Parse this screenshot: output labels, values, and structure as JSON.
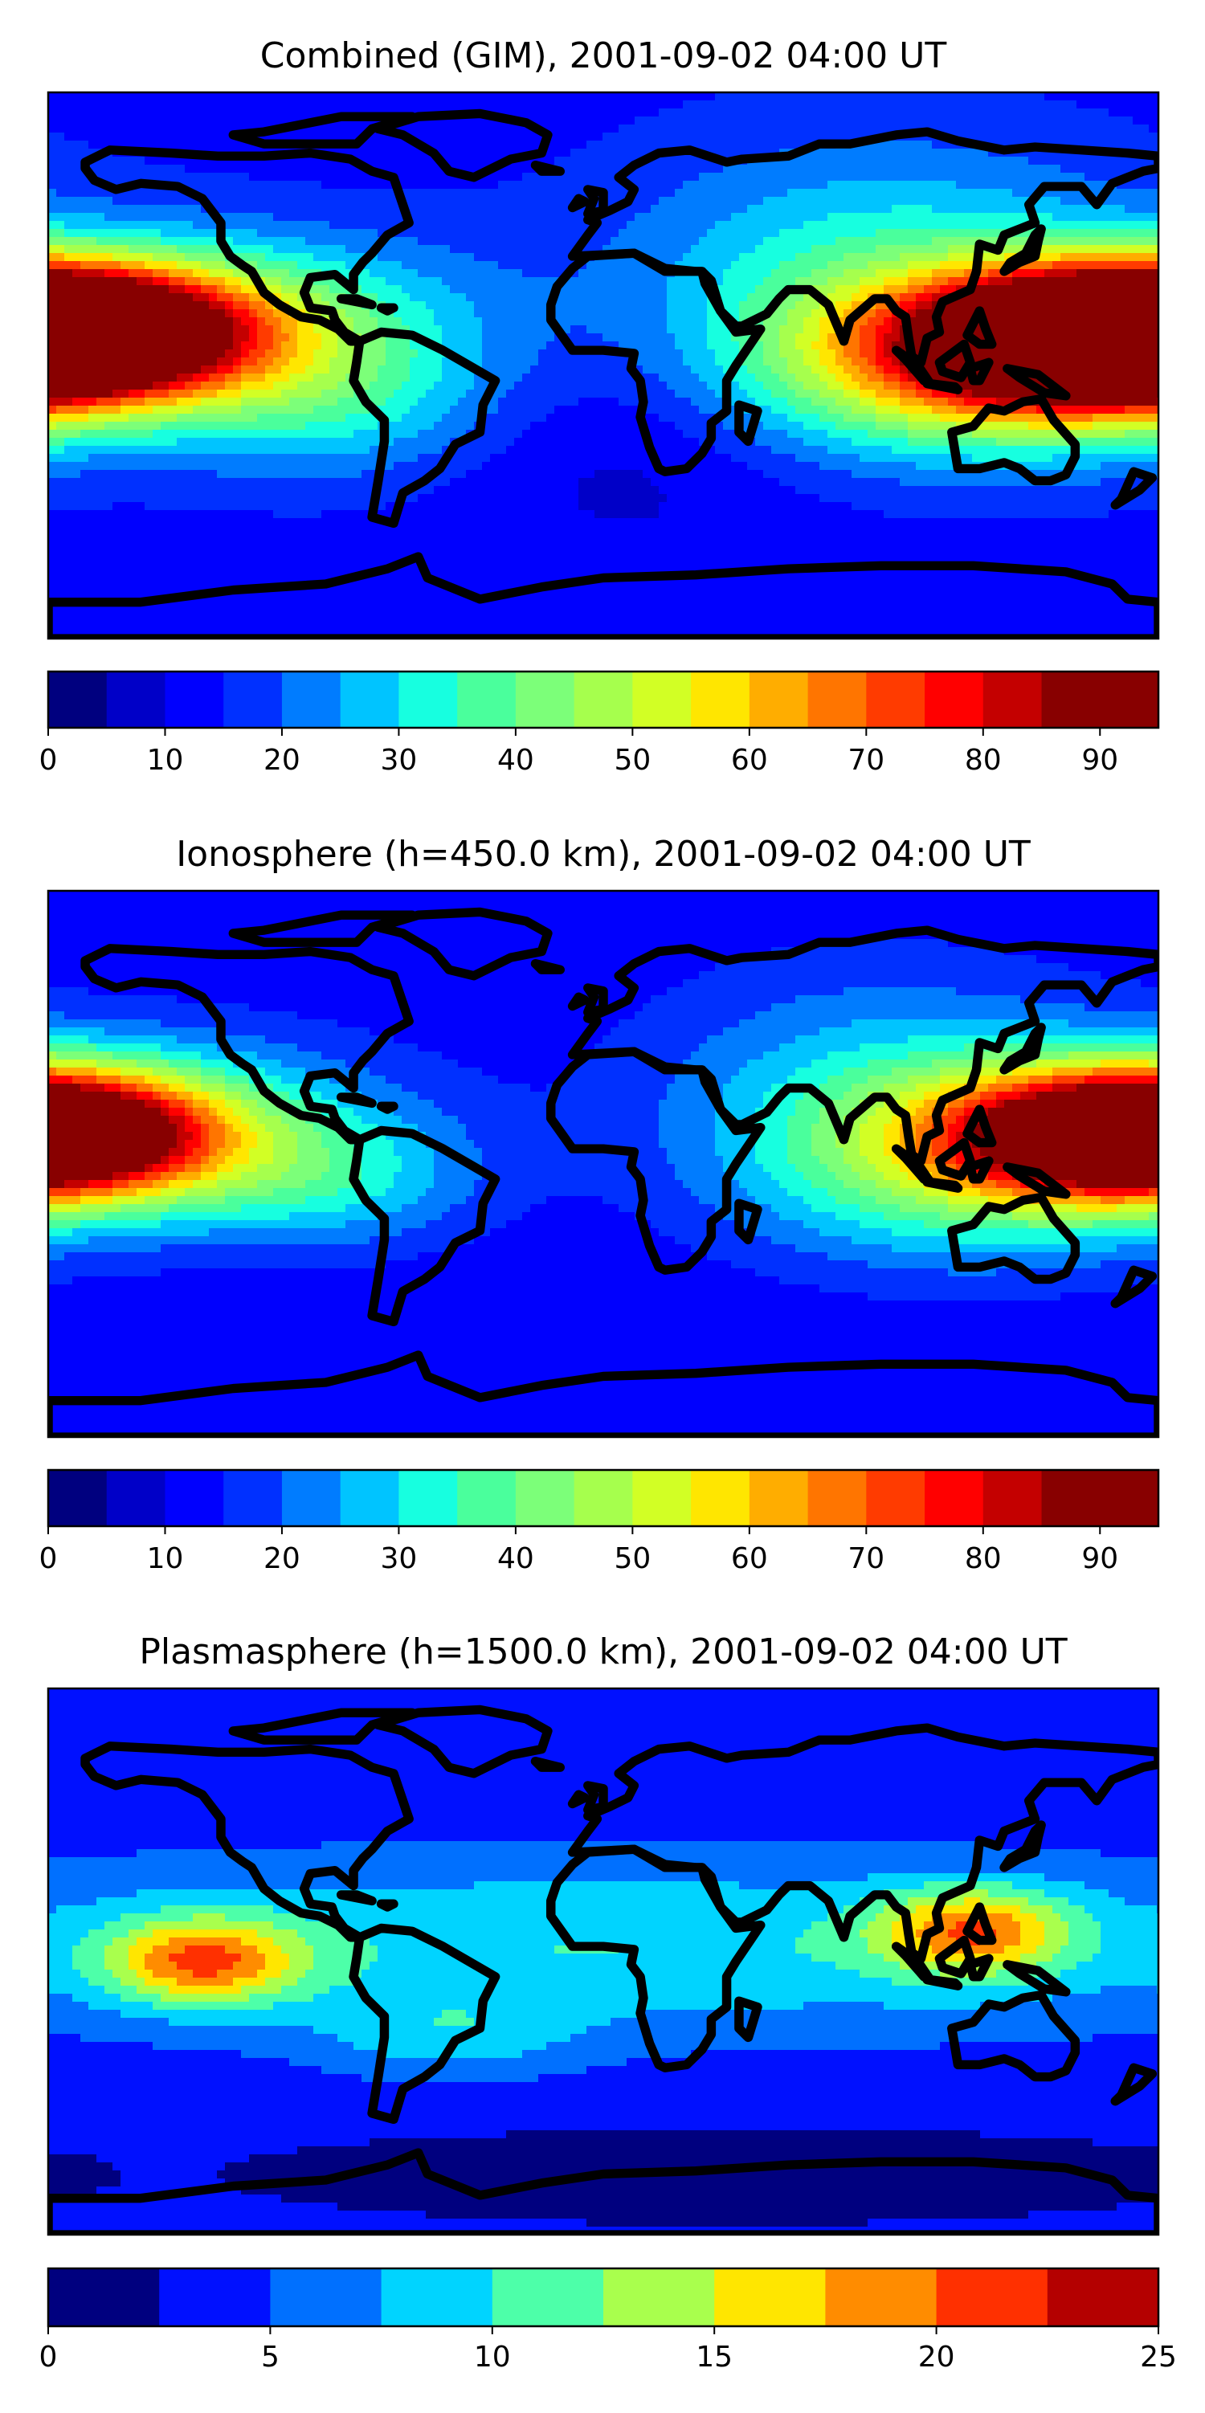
{
  "palettes": {
    "jet19": [
      "#00007f",
      "#0000c8",
      "#0000fe",
      "#0030ff",
      "#007cff",
      "#00c4ff",
      "#17ffe0",
      "#4aff9c",
      "#7cff79",
      "#a6ff4d",
      "#d2ff25",
      "#ffe600",
      "#ffad00",
      "#ff7500",
      "#ff3b00",
      "#ff0000",
      "#c40000",
      "#880000",
      "#880000"
    ],
    "jet10": [
      "#00007f",
      "#0010ff",
      "#0070ff",
      "#00d4ff",
      "#4dffa9",
      "#a9ff4d",
      "#ffe600",
      "#ff8c00",
      "#ff3000",
      "#b40000"
    ]
  },
  "chart_data": [
    {
      "type": "heatmap",
      "title": "Combined (GIM), 2001-09-02 04:00 UT",
      "projection": "plate-carree",
      "extent": {
        "lon": [
          -180,
          180
        ],
        "lat": [
          -90,
          90
        ]
      },
      "background": 13,
      "blobs": [
        {
          "lon": 160,
          "lat": 8,
          "amp": 75,
          "slon": 45,
          "slat": 16
        },
        {
          "lon": 120,
          "lat": -2,
          "amp": 32,
          "slon": 55,
          "slat": 20
        },
        {
          "lon": -175,
          "lat": 12,
          "amp": 65,
          "slon": 40,
          "slat": 14
        },
        {
          "lon": -120,
          "lat": 15,
          "amp": 25,
          "slon": 55,
          "slat": 20
        },
        {
          "lon": -90,
          "lat": -12,
          "amp": 16,
          "slon": 40,
          "slat": 18
        },
        {
          "lon": 90,
          "lat": 30,
          "amp": 20,
          "slon": 60,
          "slat": 30
        },
        {
          "lon": 10,
          "lat": -20,
          "amp": -6,
          "slon": 40,
          "slat": 30
        }
      ],
      "colorbar": {
        "ticks": [
          0,
          10,
          20,
          30,
          40,
          50,
          60,
          70,
          80,
          90
        ],
        "range": [
          0,
          95
        ],
        "levels": 19,
        "palette": "jet19"
      }
    },
    {
      "type": "heatmap",
      "title": "Ionosphere  (h=450.0 km), 2001-09-02 04:00 UT",
      "projection": "plate-carree",
      "extent": {
        "lon": [
          -180,
          180
        ],
        "lat": [
          -90,
          90
        ]
      },
      "background": 11,
      "blobs": [
        {
          "lon": 165,
          "lat": 10,
          "amp": 55,
          "slon": 40,
          "slat": 15
        },
        {
          "lon": 120,
          "lat": 0,
          "amp": 26,
          "slon": 50,
          "slat": 22
        },
        {
          "lon": -175,
          "lat": 10,
          "amp": 52,
          "slon": 35,
          "slat": 14
        },
        {
          "lon": -130,
          "lat": 12,
          "amp": 18,
          "slon": 50,
          "slat": 22
        },
        {
          "lon": -90,
          "lat": -5,
          "amp": 15,
          "slon": 35,
          "slat": 16
        },
        {
          "lon": 90,
          "lat": 25,
          "amp": 15,
          "slon": 55,
          "slat": 30
        }
      ],
      "colorbar": {
        "ticks": [
          0,
          10,
          20,
          30,
          40,
          50,
          60,
          70,
          80,
          90
        ],
        "range": [
          0,
          95
        ],
        "levels": 19,
        "palette": "jet19"
      }
    },
    {
      "type": "heatmap",
      "title": "Plasmasphere (h=1500.0 km), 2001-09-02 04:00 UT",
      "projection": "plate-carree",
      "extent": {
        "lon": [
          -180,
          180
        ],
        "lat": [
          -90,
          90
        ]
      },
      "background": 3,
      "blobs": [
        {
          "lon": 0,
          "lat": 5,
          "amp": 7,
          "slon": 200,
          "slat": 22
        },
        {
          "lon": -130,
          "lat": 0,
          "amp": 13,
          "slon": 22,
          "slat": 10
        },
        {
          "lon": 120,
          "lat": 10,
          "amp": 12,
          "slon": 22,
          "slat": 10
        },
        {
          "lon": -50,
          "lat": -25,
          "amp": 4,
          "slon": 30,
          "slat": 10
        },
        {
          "lon": 40,
          "lat": -70,
          "amp": -2,
          "slon": 100,
          "slat": 10
        }
      ],
      "colorbar": {
        "ticks": [
          0,
          5,
          10,
          15,
          20,
          25
        ],
        "range": [
          0,
          25
        ],
        "levels": 10,
        "palette": "jet10"
      }
    }
  ]
}
